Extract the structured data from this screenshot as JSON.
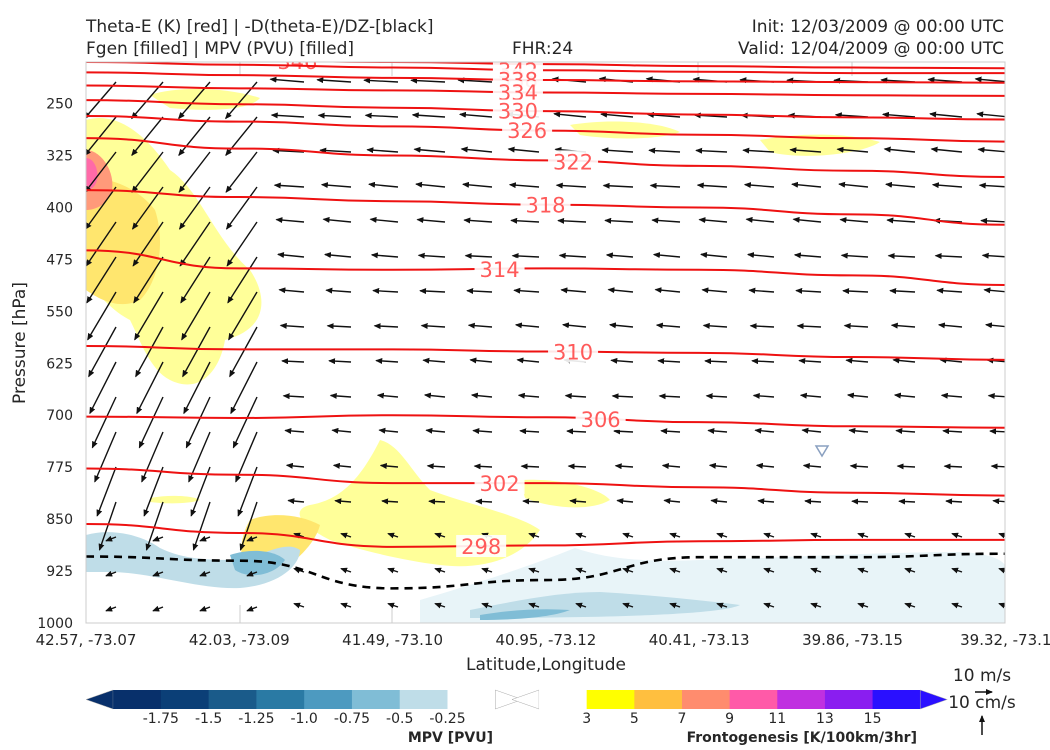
{
  "header": {
    "title_left_1": "Theta-E (K) [red] | -D(theta-E)/DZ-[black]",
    "title_left_2": "Fgen [filled] | MPV (PVU) [filled]",
    "fhr": "FHR:24",
    "init": "Init: 12/03/2009 @ 00:00 UTC",
    "valid": "Valid: 12/04/2009 @ 00:00 UTC"
  },
  "chart_data": {
    "type": "cross-section",
    "xlabel": "Latitude,Longitude",
    "ylabel": "Pressure [hPa]",
    "xticks": [
      "42.57, -73.07",
      "42.03, -73.09",
      "41.49, -73.10",
      "40.95, -73.12",
      "40.41, -73.13",
      "39.86, -73.15",
      "39.32, -73.1"
    ],
    "yticks": [
      250,
      325,
      400,
      475,
      550,
      625,
      700,
      775,
      850,
      925,
      1000
    ],
    "ylim": [
      1000,
      190
    ],
    "theta_e_contours": [
      {
        "label": "346",
        "p": [
          185,
          188,
          190,
          193,
          196,
          198,
          199
        ]
      },
      {
        "label": "342",
        "p": [
          190,
          194,
          198,
          202,
          204,
          206,
          206
        ]
      },
      {
        "label": "338",
        "p": [
          205,
          209,
          213,
          216,
          218,
          219,
          220
        ]
      },
      {
        "label": "334",
        "p": [
          224,
          228,
          231,
          234,
          236,
          238,
          239
        ]
      },
      {
        "label": "330",
        "p": [
          245,
          251,
          256,
          261,
          266,
          270,
          273
        ]
      },
      {
        "label": "326",
        "p": [
          268,
          276,
          283,
          289,
          295,
          300,
          305
        ]
      },
      {
        "label": "322",
        "p": [
          300,
          315,
          325,
          332,
          340,
          347,
          356
        ]
      },
      {
        "label": "318",
        "p": [
          375,
          385,
          391,
          396,
          400,
          410,
          425
        ]
      },
      {
        "label": "314",
        "p": [
          462,
          488,
          490,
          488,
          490,
          498,
          512
        ]
      },
      {
        "label": "310",
        "p": [
          600,
          605,
          605,
          608,
          610,
          616,
          620
        ]
      },
      {
        "label": "306",
        "p": [
          702,
          704,
          700,
          703,
          710,
          716,
          718
        ]
      },
      {
        "label": "302",
        "p": [
          777,
          786,
          798,
          798,
          804,
          812,
          816
        ]
      },
      {
        "label": "298",
        "p": [
          857,
          870,
          890,
          888,
          882,
          880,
          880
        ]
      }
    ],
    "dthetae_dz_zero": {
      "style": "dashed black",
      "p": [
        904,
        910,
        950,
        938,
        905,
        905,
        900
      ]
    },
    "mpv_colorbar": {
      "label": "MPV [PVU]",
      "ticks": [
        "-1.75",
        "-1.5",
        "-1.25",
        "-1.0",
        "-0.75",
        "-0.5",
        "-0.25"
      ],
      "colors": [
        "#08306b",
        "#0b3f77",
        "#1a5b8a",
        "#2a7aa4",
        "#4d9ac0",
        "#80bdd6",
        "#bfdde8",
        "#ffffff"
      ]
    },
    "fgen_colorbar": {
      "label": "Frontogenesis [K/100km/3hr]",
      "ticks": [
        "3",
        "5",
        "7",
        "9",
        "11",
        "13",
        "15"
      ],
      "colors": [
        "#ffffff",
        "#ffff00",
        "#ffbf3f",
        "#ff8c6e",
        "#ff5aa8",
        "#c030e0",
        "#8a1ef0",
        "#2a10ff"
      ]
    },
    "wind_key": {
      "horizontal": "10 m/s",
      "vertical": "10 cm/s"
    }
  }
}
